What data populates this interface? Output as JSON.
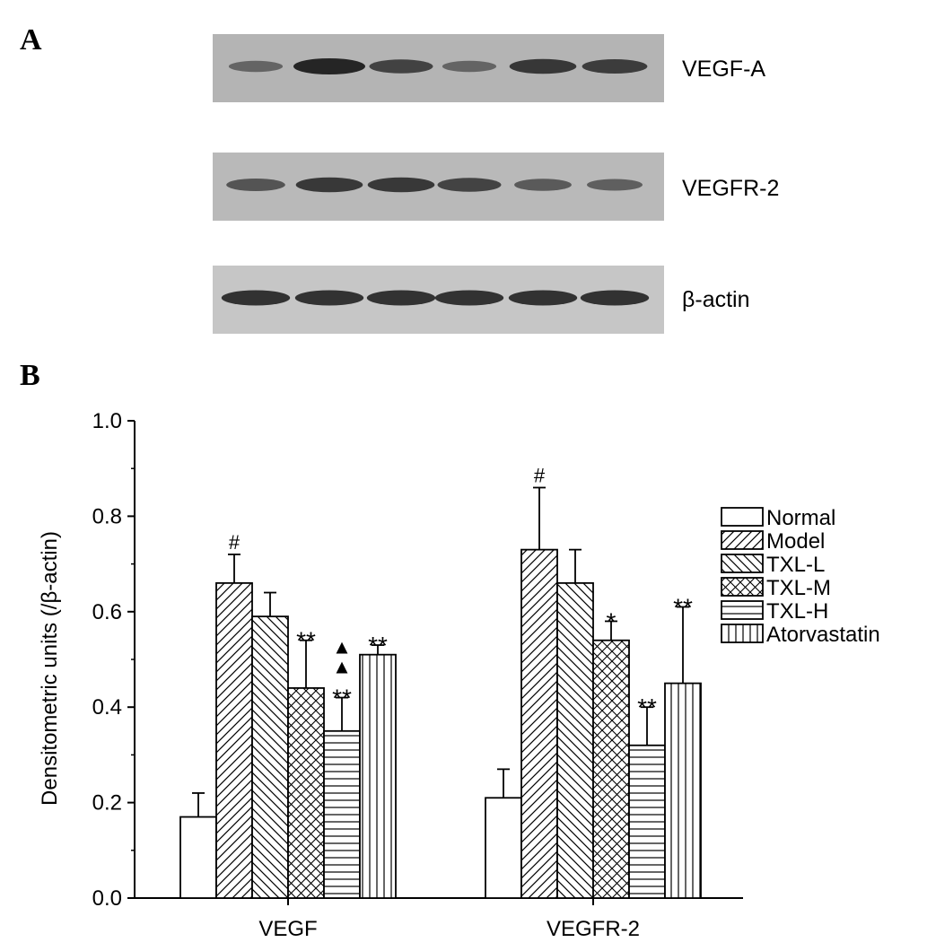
{
  "panel_a": {
    "letter": "A",
    "blots": [
      {
        "label": "VEGF-A",
        "bg": "#b4b4b4",
        "intensities": [
          0.45,
          1.0,
          0.75,
          0.45,
          0.85,
          0.8
        ]
      },
      {
        "label": "VEGFR-2",
        "bg": "#b9b9b9",
        "intensities": [
          0.6,
          0.85,
          0.85,
          0.75,
          0.55,
          0.5
        ]
      },
      {
        "label": "β-actin",
        "bg": "#c6c6c6",
        "intensities": [
          0.9,
          0.9,
          0.9,
          0.9,
          0.9,
          0.9
        ]
      }
    ]
  },
  "panel_b": {
    "letter": "B"
  },
  "chart_data": {
    "type": "bar",
    "ylabel": "Densitometric units (/β-actin)",
    "xlabel": "",
    "ylim": [
      0,
      1.0
    ],
    "yticks": [
      "0.0",
      "0.2",
      "0.4",
      "0.6",
      "0.8",
      "1.0"
    ],
    "categories": [
      "VEGF",
      "VEGFR-2"
    ],
    "series": [
      {
        "name": "Normal",
        "pattern": "none",
        "values": [
          0.17,
          0.21
        ],
        "errors": [
          0.05,
          0.06
        ],
        "marks": [
          "",
          ""
        ]
      },
      {
        "name": "Model",
        "pattern": "diag-right",
        "values": [
          0.66,
          0.73
        ],
        "errors": [
          0.06,
          0.13
        ],
        "marks": [
          "#",
          "#"
        ]
      },
      {
        "name": "TXL-L",
        "pattern": "diag-left",
        "values": [
          0.59,
          0.66
        ],
        "errors": [
          0.05,
          0.07
        ],
        "marks": [
          "",
          ""
        ]
      },
      {
        "name": "TXL-M",
        "pattern": "cross",
        "values": [
          0.44,
          0.54
        ],
        "errors": [
          0.1,
          0.04
        ],
        "marks": [
          "**",
          "*"
        ]
      },
      {
        "name": "TXL-H",
        "pattern": "horizontal",
        "values": [
          0.35,
          0.32
        ],
        "errors": [
          0.07,
          0.08
        ],
        "marks": [
          "**",
          "**"
        ]
      },
      {
        "name": "Atorvastatin",
        "pattern": "vertical",
        "values": [
          0.51,
          0.45
        ],
        "errors": [
          0.02,
          0.16
        ],
        "marks": [
          "**",
          "**"
        ]
      }
    ],
    "extra_marks": [
      {
        "category": "VEGF",
        "series": "TXL-H",
        "symbol": "▲▲"
      }
    ],
    "legend": "right"
  },
  "colors": {
    "bar_fill": "#ffffff",
    "stroke": "#000000"
  }
}
